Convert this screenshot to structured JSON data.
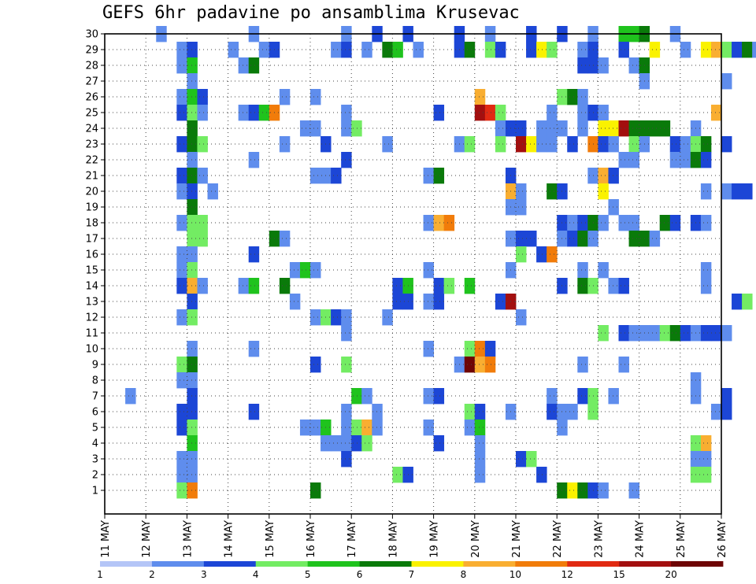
{
  "chart_data": {
    "type": "heatmap",
    "title": "GEFS 6hr padavine po ansamblima Krusevac",
    "xlabel": "",
    "ylabel": "",
    "grid": true,
    "x_ticks": [
      {
        "label": "11 MAY",
        "step": 0
      },
      {
        "label": "12 MAY",
        "step": 4
      },
      {
        "label": "13 MAY",
        "step": 8
      },
      {
        "label": "14 MAY",
        "step": 12
      },
      {
        "label": "15 MAY",
        "step": 16
      },
      {
        "label": "16 MAY",
        "step": 20
      },
      {
        "label": "17 MAY",
        "step": 24
      },
      {
        "label": "18 MAY",
        "step": 28
      },
      {
        "label": "19 MAY",
        "step": 32
      },
      {
        "label": "20 MAY",
        "step": 36
      },
      {
        "label": "21 MAY",
        "step": 40
      },
      {
        "label": "22 MAY",
        "step": 44
      },
      {
        "label": "23 MAY",
        "step": 48
      },
      {
        "label": "24 MAY",
        "step": 52
      },
      {
        "label": "25 MAY",
        "step": 56
      },
      {
        "label": "26 MAY",
        "step": 60
      }
    ],
    "x_steps": 60,
    "y_ticks": [
      "1",
      "2",
      "3",
      "4",
      "5",
      "6",
      "7",
      "8",
      "9",
      "10",
      "11",
      "12",
      "13",
      "14",
      "15",
      "16",
      "17",
      "18",
      "19",
      "20",
      "21",
      "22",
      "23",
      "24",
      "25",
      "26",
      "27",
      "28",
      "29",
      "30"
    ],
    "legend": {
      "placement": "bottom",
      "labels": [
        "1",
        "2",
        "3",
        "4",
        "5",
        "6",
        "7",
        "8",
        "10",
        "12",
        "15",
        "20"
      ],
      "colors": [
        "#b4c5f7",
        "#5f8ded",
        "#1c46d6",
        "#73ec63",
        "#1fc31d",
        "#0a7a0a",
        "#faf200",
        "#f9ae31",
        "#f17c0a",
        "#e12a12",
        "#a30f0f",
        "#6e0505"
      ]
    },
    "cells": [
      [
        5,
        30,
        1
      ],
      [
        14,
        30,
        1
      ],
      [
        23,
        30,
        1
      ],
      [
        26,
        30,
        2
      ],
      [
        29,
        30,
        2
      ],
      [
        34,
        30,
        2
      ],
      [
        37,
        30,
        1
      ],
      [
        41,
        30,
        2
      ],
      [
        44,
        30,
        2
      ],
      [
        47,
        30,
        1
      ],
      [
        50,
        30,
        4
      ],
      [
        51,
        30,
        4
      ],
      [
        52,
        30,
        5
      ],
      [
        55,
        30,
        1
      ],
      [
        7,
        29,
        1
      ],
      [
        8,
        29,
        2
      ],
      [
        12,
        29,
        1
      ],
      [
        15,
        29,
        1
      ],
      [
        16,
        29,
        2
      ],
      [
        22,
        29,
        1
      ],
      [
        23,
        29,
        2
      ],
      [
        25,
        29,
        1
      ],
      [
        27,
        29,
        5
      ],
      [
        28,
        29,
        4
      ],
      [
        30,
        29,
        1
      ],
      [
        34,
        29,
        2
      ],
      [
        35,
        29,
        5
      ],
      [
        37,
        29,
        3
      ],
      [
        38,
        29,
        2
      ],
      [
        41,
        29,
        2
      ],
      [
        42,
        29,
        6
      ],
      [
        43,
        29,
        3
      ],
      [
        46,
        29,
        1
      ],
      [
        47,
        29,
        2
      ],
      [
        50,
        29,
        2
      ],
      [
        53,
        29,
        6
      ],
      [
        56,
        29,
        1
      ],
      [
        58,
        29,
        6
      ],
      [
        59,
        29,
        7
      ],
      [
        60,
        29,
        3
      ],
      [
        61,
        29,
        2
      ],
      [
        62,
        29,
        5
      ],
      [
        63,
        29,
        1
      ],
      [
        7,
        28,
        1
      ],
      [
        8,
        28,
        4
      ],
      [
        13,
        28,
        1
      ],
      [
        14,
        28,
        5
      ],
      [
        46,
        28,
        2
      ],
      [
        47,
        28,
        2
      ],
      [
        48,
        28,
        1
      ],
      [
        51,
        28,
        1
      ],
      [
        52,
        28,
        5
      ],
      [
        8,
        27,
        1
      ],
      [
        52,
        27,
        1
      ],
      [
        60,
        27,
        1
      ],
      [
        7,
        26,
        1
      ],
      [
        8,
        26,
        4
      ],
      [
        9,
        26,
        2
      ],
      [
        17,
        26,
        1
      ],
      [
        20,
        26,
        1
      ],
      [
        36,
        26,
        7
      ],
      [
        44,
        26,
        3
      ],
      [
        45,
        26,
        5
      ],
      [
        46,
        26,
        1
      ],
      [
        7,
        25,
        2
      ],
      [
        8,
        25,
        3
      ],
      [
        9,
        25,
        1
      ],
      [
        13,
        25,
        1
      ],
      [
        14,
        25,
        2
      ],
      [
        15,
        25,
        4
      ],
      [
        16,
        25,
        8
      ],
      [
        23,
        25,
        1
      ],
      [
        32,
        25,
        2
      ],
      [
        36,
        25,
        10
      ],
      [
        37,
        25,
        9
      ],
      [
        38,
        25,
        3
      ],
      [
        43,
        25,
        1
      ],
      [
        46,
        25,
        1
      ],
      [
        47,
        25,
        2
      ],
      [
        48,
        25,
        1
      ],
      [
        59,
        25,
        7
      ],
      [
        8,
        24,
        5
      ],
      [
        19,
        24,
        1
      ],
      [
        20,
        24,
        1
      ],
      [
        23,
        24,
        1
      ],
      [
        24,
        24,
        3
      ],
      [
        38,
        24,
        1
      ],
      [
        39,
        24,
        2
      ],
      [
        40,
        24,
        2
      ],
      [
        42,
        24,
        1
      ],
      [
        43,
        24,
        1
      ],
      [
        44,
        24,
        1
      ],
      [
        46,
        24,
        1
      ],
      [
        48,
        24,
        6
      ],
      [
        49,
        24,
        6
      ],
      [
        50,
        24,
        10
      ],
      [
        51,
        24,
        5
      ],
      [
        52,
        24,
        5
      ],
      [
        53,
        24,
        5
      ],
      [
        54,
        24,
        5
      ],
      [
        57,
        24,
        1
      ],
      [
        7,
        23,
        2
      ],
      [
        8,
        23,
        5
      ],
      [
        9,
        23,
        3
      ],
      [
        17,
        23,
        1
      ],
      [
        21,
        23,
        2
      ],
      [
        27,
        23,
        1
      ],
      [
        34,
        23,
        1
      ],
      [
        35,
        23,
        3
      ],
      [
        38,
        23,
        3
      ],
      [
        40,
        23,
        10
      ],
      [
        41,
        23,
        6
      ],
      [
        42,
        23,
        1
      ],
      [
        43,
        23,
        1
      ],
      [
        45,
        23,
        2
      ],
      [
        47,
        23,
        8
      ],
      [
        48,
        23,
        2
      ],
      [
        49,
        23,
        1
      ],
      [
        51,
        23,
        3
      ],
      [
        52,
        23,
        1
      ],
      [
        55,
        23,
        2
      ],
      [
        56,
        23,
        1
      ],
      [
        57,
        23,
        3
      ],
      [
        58,
        23,
        5
      ],
      [
        60,
        23,
        2
      ],
      [
        8,
        22,
        1
      ],
      [
        14,
        22,
        1
      ],
      [
        23,
        22,
        2
      ],
      [
        50,
        22,
        1
      ],
      [
        51,
        22,
        1
      ],
      [
        55,
        22,
        1
      ],
      [
        56,
        22,
        1
      ],
      [
        57,
        22,
        5
      ],
      [
        58,
        22,
        2
      ],
      [
        7,
        21,
        2
      ],
      [
        8,
        21,
        5
      ],
      [
        9,
        21,
        1
      ],
      [
        20,
        21,
        1
      ],
      [
        21,
        21,
        1
      ],
      [
        22,
        21,
        2
      ],
      [
        31,
        21,
        1
      ],
      [
        32,
        21,
        5
      ],
      [
        39,
        21,
        2
      ],
      [
        47,
        21,
        1
      ],
      [
        48,
        21,
        7
      ],
      [
        49,
        21,
        2
      ],
      [
        7,
        20,
        1
      ],
      [
        8,
        20,
        2
      ],
      [
        10,
        20,
        1
      ],
      [
        39,
        20,
        7
      ],
      [
        40,
        20,
        1
      ],
      [
        43,
        20,
        5
      ],
      [
        44,
        20,
        2
      ],
      [
        48,
        20,
        6
      ],
      [
        58,
        20,
        1
      ],
      [
        60,
        20,
        1
      ],
      [
        61,
        20,
        2
      ],
      [
        62,
        20,
        2
      ],
      [
        8,
        19,
        5
      ],
      [
        39,
        19,
        1
      ],
      [
        40,
        19,
        1
      ],
      [
        49,
        19,
        1
      ],
      [
        7,
        18,
        1
      ],
      [
        8,
        18,
        3
      ],
      [
        9,
        18,
        3
      ],
      [
        31,
        18,
        1
      ],
      [
        32,
        18,
        7
      ],
      [
        33,
        18,
        8
      ],
      [
        44,
        18,
        2
      ],
      [
        45,
        18,
        1
      ],
      [
        46,
        18,
        2
      ],
      [
        47,
        18,
        5
      ],
      [
        48,
        18,
        1
      ],
      [
        50,
        18,
        1
      ],
      [
        51,
        18,
        1
      ],
      [
        54,
        18,
        5
      ],
      [
        55,
        18,
        2
      ],
      [
        57,
        18,
        2
      ],
      [
        58,
        18,
        1
      ],
      [
        8,
        17,
        3
      ],
      [
        9,
        17,
        3
      ],
      [
        16,
        17,
        5
      ],
      [
        17,
        17,
        1
      ],
      [
        39,
        17,
        1
      ],
      [
        40,
        17,
        2
      ],
      [
        41,
        17,
        2
      ],
      [
        44,
        17,
        1
      ],
      [
        45,
        17,
        2
      ],
      [
        46,
        17,
        5
      ],
      [
        47,
        17,
        1
      ],
      [
        51,
        17,
        5
      ],
      [
        52,
        17,
        5
      ],
      [
        53,
        17,
        1
      ],
      [
        7,
        16,
        1
      ],
      [
        8,
        16,
        1
      ],
      [
        14,
        16,
        2
      ],
      [
        40,
        16,
        3
      ],
      [
        42,
        16,
        2
      ],
      [
        43,
        16,
        8
      ],
      [
        7,
        15,
        1
      ],
      [
        8,
        15,
        3
      ],
      [
        18,
        15,
        1
      ],
      [
        19,
        15,
        4
      ],
      [
        20,
        15,
        1
      ],
      [
        31,
        15,
        1
      ],
      [
        39,
        15,
        1
      ],
      [
        46,
        15,
        1
      ],
      [
        48,
        15,
        1
      ],
      [
        58,
        15,
        1
      ],
      [
        7,
        14,
        2
      ],
      [
        8,
        14,
        7
      ],
      [
        9,
        14,
        1
      ],
      [
        13,
        14,
        1
      ],
      [
        14,
        14,
        4
      ],
      [
        17,
        14,
        5
      ],
      [
        28,
        14,
        2
      ],
      [
        29,
        14,
        4
      ],
      [
        32,
        14,
        2
      ],
      [
        33,
        14,
        3
      ],
      [
        35,
        14,
        4
      ],
      [
        44,
        14,
        2
      ],
      [
        46,
        14,
        5
      ],
      [
        47,
        14,
        3
      ],
      [
        49,
        14,
        1
      ],
      [
        50,
        14,
        2
      ],
      [
        58,
        14,
        1
      ],
      [
        8,
        13,
        2
      ],
      [
        18,
        13,
        1
      ],
      [
        28,
        13,
        2
      ],
      [
        29,
        13,
        2
      ],
      [
        31,
        13,
        1
      ],
      [
        32,
        13,
        2
      ],
      [
        38,
        13,
        2
      ],
      [
        39,
        13,
        10
      ],
      [
        61,
        13,
        2
      ],
      [
        62,
        13,
        3
      ],
      [
        7,
        12,
        1
      ],
      [
        8,
        12,
        3
      ],
      [
        20,
        12,
        1
      ],
      [
        21,
        12,
        3
      ],
      [
        22,
        12,
        2
      ],
      [
        23,
        12,
        1
      ],
      [
        27,
        12,
        1
      ],
      [
        40,
        12,
        1
      ],
      [
        23,
        11,
        1
      ],
      [
        48,
        11,
        3
      ],
      [
        50,
        11,
        2
      ],
      [
        51,
        11,
        1
      ],
      [
        52,
        11,
        1
      ],
      [
        53,
        11,
        1
      ],
      [
        54,
        11,
        3
      ],
      [
        55,
        11,
        5
      ],
      [
        56,
        11,
        2
      ],
      [
        57,
        11,
        1
      ],
      [
        58,
        11,
        2
      ],
      [
        59,
        11,
        2
      ],
      [
        60,
        11,
        1
      ],
      [
        8,
        10,
        1
      ],
      [
        14,
        10,
        1
      ],
      [
        31,
        10,
        1
      ],
      [
        35,
        10,
        3
      ],
      [
        36,
        10,
        8
      ],
      [
        37,
        10,
        2
      ],
      [
        7,
        9,
        3
      ],
      [
        8,
        9,
        5
      ],
      [
        20,
        9,
        2
      ],
      [
        23,
        9,
        3
      ],
      [
        34,
        9,
        1
      ],
      [
        35,
        9,
        11
      ],
      [
        36,
        9,
        7
      ],
      [
        37,
        9,
        8
      ],
      [
        46,
        9,
        1
      ],
      [
        50,
        9,
        1
      ],
      [
        7,
        8,
        1
      ],
      [
        8,
        8,
        1
      ],
      [
        57,
        8,
        1
      ],
      [
        2,
        7,
        1
      ],
      [
        8,
        7,
        2
      ],
      [
        24,
        7,
        4
      ],
      [
        25,
        7,
        1
      ],
      [
        31,
        7,
        1
      ],
      [
        32,
        7,
        2
      ],
      [
        43,
        7,
        1
      ],
      [
        46,
        7,
        2
      ],
      [
        47,
        7,
        3
      ],
      [
        49,
        7,
        1
      ],
      [
        57,
        7,
        1
      ],
      [
        60,
        7,
        2
      ],
      [
        7,
        6,
        2
      ],
      [
        8,
        6,
        2
      ],
      [
        14,
        6,
        2
      ],
      [
        23,
        6,
        1
      ],
      [
        26,
        6,
        1
      ],
      [
        35,
        6,
        3
      ],
      [
        36,
        6,
        2
      ],
      [
        39,
        6,
        1
      ],
      [
        43,
        6,
        2
      ],
      [
        44,
        6,
        1
      ],
      [
        45,
        6,
        1
      ],
      [
        47,
        6,
        3
      ],
      [
        59,
        6,
        1
      ],
      [
        60,
        6,
        2
      ],
      [
        7,
        5,
        2
      ],
      [
        8,
        5,
        3
      ],
      [
        19,
        5,
        1
      ],
      [
        20,
        5,
        1
      ],
      [
        21,
        5,
        4
      ],
      [
        23,
        5,
        1
      ],
      [
        24,
        5,
        3
      ],
      [
        25,
        5,
        7
      ],
      [
        26,
        5,
        1
      ],
      [
        31,
        5,
        1
      ],
      [
        35,
        5,
        1
      ],
      [
        36,
        5,
        4
      ],
      [
        44,
        5,
        1
      ],
      [
        8,
        4,
        4
      ],
      [
        21,
        4,
        1
      ],
      [
        22,
        4,
        1
      ],
      [
        23,
        4,
        1
      ],
      [
        24,
        4,
        2
      ],
      [
        25,
        4,
        3
      ],
      [
        32,
        4,
        2
      ],
      [
        36,
        4,
        1
      ],
      [
        57,
        4,
        3
      ],
      [
        58,
        4,
        7
      ],
      [
        7,
        3,
        1
      ],
      [
        8,
        3,
        1
      ],
      [
        23,
        3,
        2
      ],
      [
        36,
        3,
        1
      ],
      [
        40,
        3,
        2
      ],
      [
        41,
        3,
        3
      ],
      [
        57,
        3,
        1
      ],
      [
        58,
        3,
        1
      ],
      [
        7,
        2,
        1
      ],
      [
        8,
        2,
        1
      ],
      [
        28,
        2,
        3
      ],
      [
        29,
        2,
        2
      ],
      [
        36,
        2,
        1
      ],
      [
        42,
        2,
        2
      ],
      [
        57,
        2,
        3
      ],
      [
        58,
        2,
        3
      ],
      [
        7,
        1,
        3
      ],
      [
        8,
        1,
        8
      ],
      [
        20,
        1,
        5
      ],
      [
        44,
        1,
        5
      ],
      [
        45,
        1,
        6
      ],
      [
        46,
        1,
        5
      ],
      [
        47,
        1,
        2
      ],
      [
        48,
        1,
        1
      ],
      [
        51,
        1,
        1
      ]
    ]
  }
}
